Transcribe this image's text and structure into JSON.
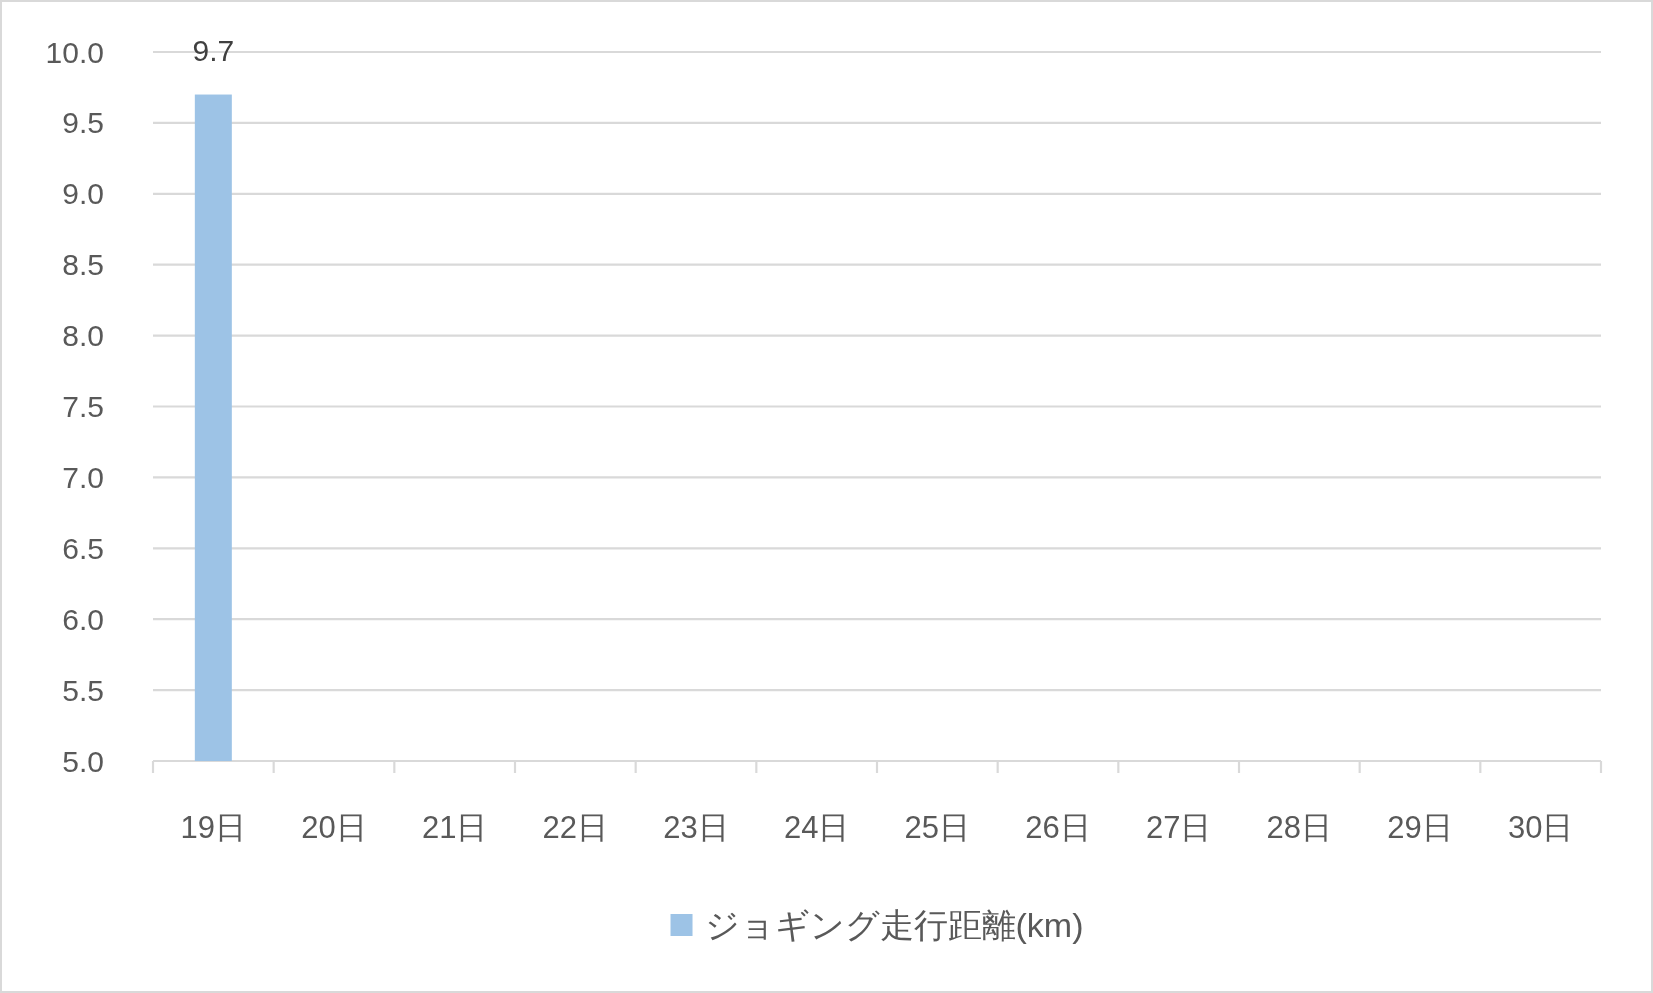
{
  "chart_data": {
    "type": "bar",
    "categories": [
      "19日",
      "20日",
      "21日",
      "22日",
      "23日",
      "24日",
      "25日",
      "26日",
      "27日",
      "28日",
      "29日",
      "30日"
    ],
    "series": [
      {
        "name": "ジョギング走行距離(km)",
        "color": "#9dc3e6",
        "values": [
          9.7,
          null,
          null,
          null,
          null,
          null,
          null,
          null,
          null,
          null,
          null,
          null
        ],
        "value_labels": [
          "9.7",
          null,
          null,
          null,
          null,
          null,
          null,
          null,
          null,
          null,
          null,
          null
        ]
      }
    ],
    "ylim": [
      5,
      10
    ],
    "yticks": [
      {
        "value": 5,
        "label": "5.0"
      },
      5.5,
      {
        "value": 6,
        "label": "6.0"
      },
      6.5,
      {
        "value": 7,
        "label": "7.0"
      },
      7.5,
      {
        "value": 8,
        "label": "8.0"
      },
      8.5,
      {
        "value": 9,
        "label": "9.0"
      },
      9.5,
      {
        "value": 10,
        "label": "10.0"
      }
    ],
    "grid": "y",
    "legend": "bottom"
  }
}
